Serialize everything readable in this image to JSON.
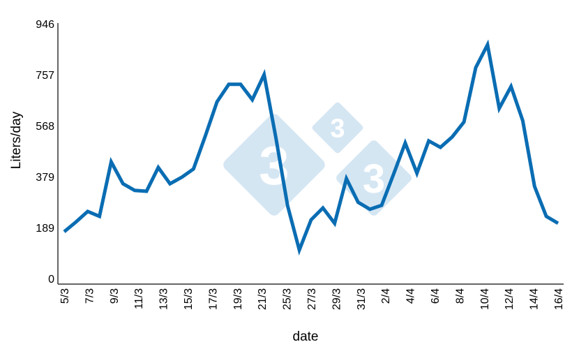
{
  "chart_data": {
    "type": "line",
    "title": "",
    "xlabel": "date",
    "ylabel": "Liters/day",
    "ylim": [
      0,
      946
    ],
    "yticks": [
      0,
      189,
      379,
      568,
      757,
      946
    ],
    "xtick_labels": [
      "5/3",
      "7/3",
      "9/3",
      "11/3",
      "13/3",
      "15/3",
      "17/3",
      "19/3",
      "21/3",
      "25/3",
      "27/3",
      "29/3",
      "31/3",
      "2/4",
      "4/4",
      "6/4",
      "8/4",
      "10/4",
      "12/4",
      "14/4",
      "16/4"
    ],
    "grid": false,
    "legend": null,
    "line_color": "#0a6db3",
    "watermark": {
      "glyph": "3",
      "color": "#d5e6f3"
    },
    "series": [
      {
        "name": "Liters/day",
        "values": [
          174,
          210,
          249,
          231,
          433,
          352,
          327,
          324,
          412,
          352,
          376,
          407,
          529,
          656,
          721,
          721,
          664,
          757,
          524,
          270,
          106,
          218,
          262,
          205,
          371,
          283,
          257,
          272,
          386,
          503,
          391,
          511,
          487,
          526,
          581,
          783,
          868,
          632,
          713,
          586,
          342,
          231,
          205
        ]
      }
    ]
  }
}
